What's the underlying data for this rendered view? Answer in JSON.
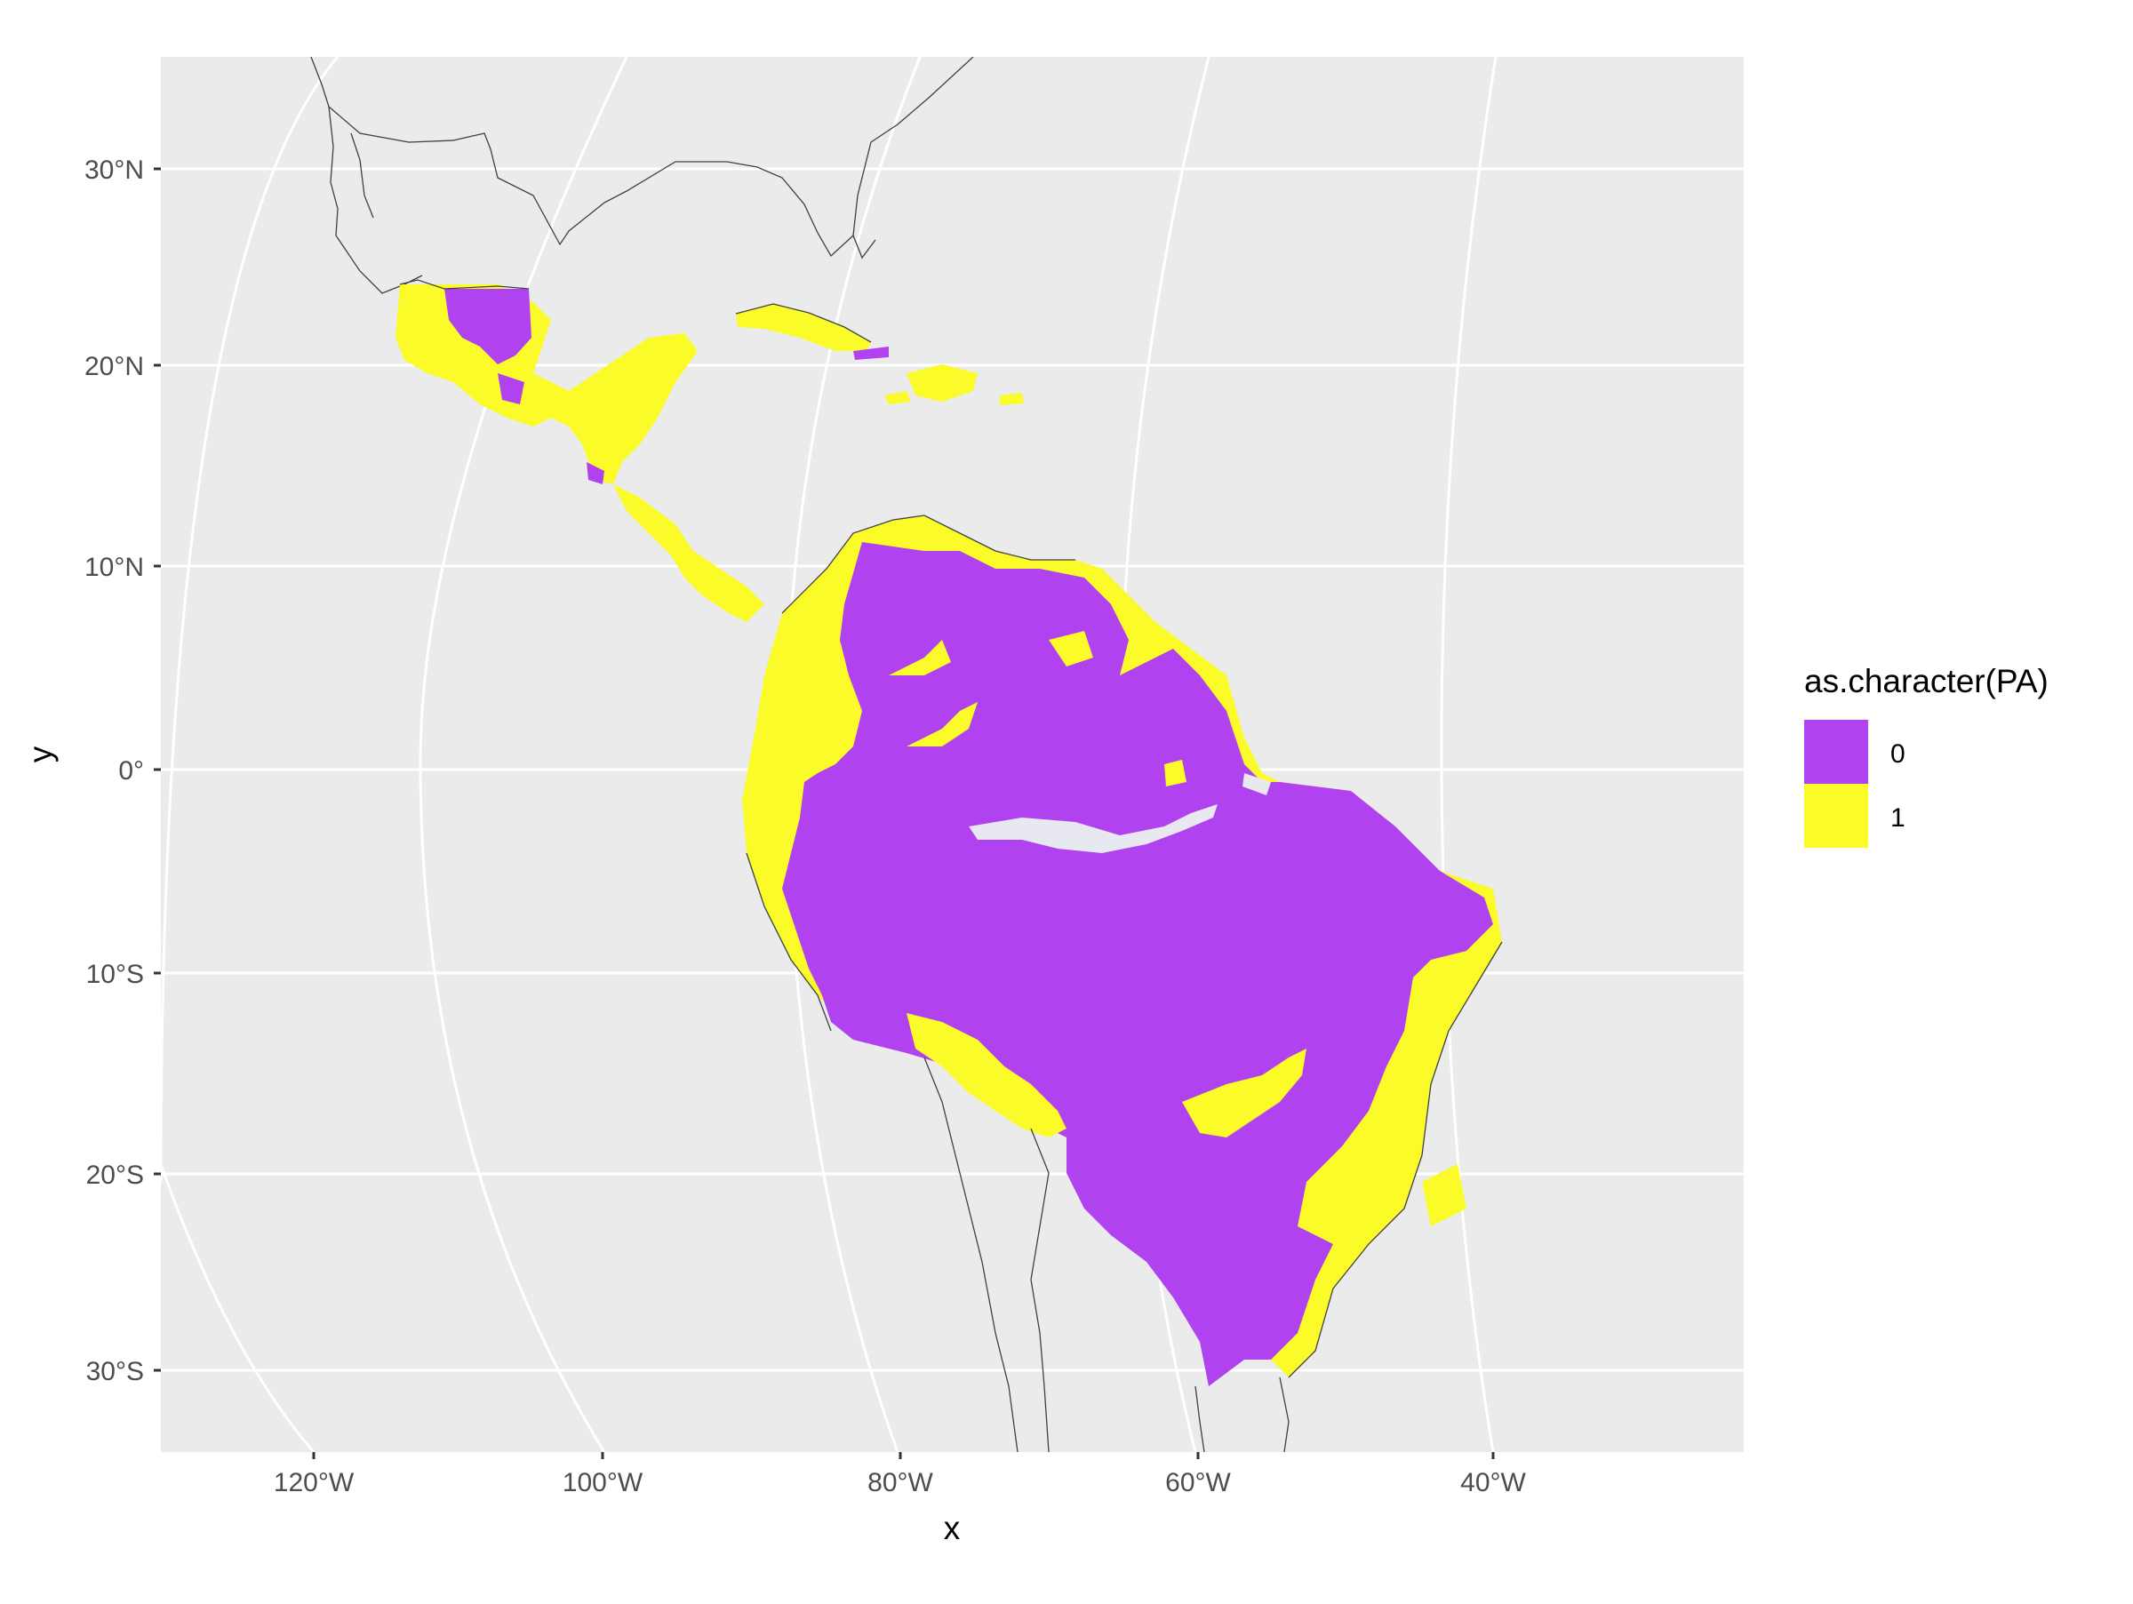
{
  "plot": {
    "xlabel": "x",
    "ylabel": "y",
    "panel_background": "#ebebeb",
    "grid_color": "#ffffff",
    "x_ticks": [
      "120°W",
      "100°W",
      "80°W",
      "60°W",
      "40°W"
    ],
    "y_ticks": [
      "30°N",
      "20°N",
      "10°N",
      "0°",
      "10°S",
      "20°S",
      "30°S"
    ]
  },
  "legend": {
    "title": "as.character(PA)",
    "items": [
      {
        "label": "0",
        "color": "#b042ef"
      },
      {
        "label": "1",
        "color": "#fbfb2a"
      }
    ]
  },
  "map": {
    "borders_color": "#404040",
    "presence_color": "#fbfb2a",
    "absence_color": "#b042ef"
  }
}
